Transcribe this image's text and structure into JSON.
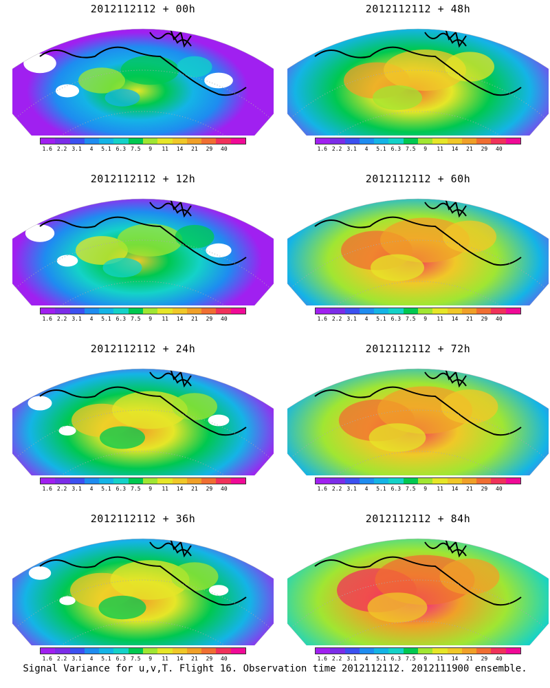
{
  "panels": [
    {
      "title": "2012112112 + 00h"
    },
    {
      "title": "2012112112 + 12h"
    },
    {
      "title": "2012112112 + 24h"
    },
    {
      "title": "2012112112 + 36h"
    },
    {
      "title": "2012112112 + 48h"
    },
    {
      "title": "2012112112 + 60h"
    },
    {
      "title": "2012112112 + 72h"
    },
    {
      "title": "2012112112 + 84h"
    }
  ],
  "colorbar": {
    "labels": [
      "1.6",
      "2.2",
      "3.1",
      "4",
      "5.1",
      "6.3",
      "7.5",
      "9",
      "11",
      "14",
      "21",
      "29",
      "40"
    ],
    "colors": [
      "#a020f0",
      "#7b2de8",
      "#3c50f0",
      "#1e8cf0",
      "#14b4e6",
      "#14d2c8",
      "#00c850",
      "#a0e632",
      "#e6e628",
      "#f0c828",
      "#f0a028",
      "#f06e32",
      "#f0325a",
      "#f00a96"
    ]
  },
  "caption": "Signal Variance for u,v,T. Flight 16. Observation time 2012112112. 2012111900 ensemble."
}
